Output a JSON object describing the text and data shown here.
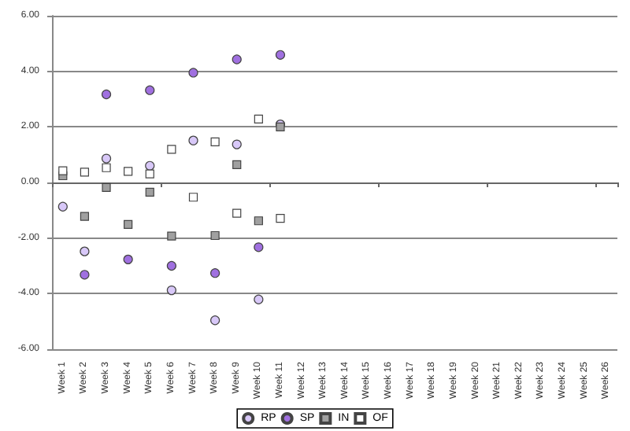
{
  "chart_data": {
    "type": "scatter",
    "categories": [
      "Week 1",
      "Week 2",
      "Week 3",
      "Week 4",
      "Week 5",
      "Week 6",
      "Week 7",
      "Week 8",
      "Week 9",
      "Week 10",
      "Week 11",
      "Week 12",
      "Week 13",
      "Week 14",
      "Week 15",
      "Week 16",
      "Week 17",
      "Week 18",
      "Week 19",
      "Week 20",
      "Week 21",
      "Week 22",
      "Week 23",
      "Week 24",
      "Week 25",
      "Week 26"
    ],
    "series": [
      {
        "name": "RP",
        "color": "#d8c8f8",
        "marker": "circle",
        "values": [
          -0.87,
          -2.48,
          0.86,
          null,
          0.6,
          -3.88,
          1.51,
          -4.96,
          1.37,
          -4.21,
          2.09,
          null,
          null,
          null,
          null,
          null,
          null,
          null,
          null,
          null,
          null,
          null,
          null,
          null,
          null,
          null
        ]
      },
      {
        "name": "SP",
        "color": "#a070e0",
        "marker": "circle",
        "values": [
          null,
          -3.32,
          3.17,
          -2.77,
          3.32,
          -3.0,
          3.95,
          -3.26,
          4.43,
          -2.33,
          4.59,
          null,
          null,
          null,
          null,
          null,
          null,
          null,
          null,
          null,
          null,
          null,
          null,
          null,
          null,
          null
        ]
      },
      {
        "name": "IN",
        "color": "#a0a0a0",
        "marker": "square",
        "values": [
          0.24,
          -1.22,
          -0.18,
          -1.51,
          -0.35,
          -1.93,
          null,
          -1.91,
          0.64,
          -1.38,
          2.0,
          null,
          null,
          null,
          null,
          null,
          null,
          null,
          null,
          null,
          null,
          null,
          null,
          null,
          null,
          null
        ]
      },
      {
        "name": "OF",
        "color": "#ffffff",
        "marker": "square",
        "values": [
          0.42,
          0.37,
          0.53,
          0.4,
          0.31,
          1.19,
          -0.53,
          1.46,
          -1.11,
          2.28,
          -1.29,
          null,
          null,
          null,
          null,
          null,
          null,
          null,
          null,
          null,
          null,
          null,
          null,
          null,
          null,
          null
        ]
      }
    ],
    "ylim": [
      -6,
      6
    ],
    "yticks": [
      {
        "value": -6,
        "label": "-6.00"
      },
      {
        "value": -4,
        "label": "-4.00"
      },
      {
        "value": -2,
        "label": "-2.00"
      },
      {
        "value": 0,
        "label": "0.00"
      },
      {
        "value": 2,
        "label": "2.00"
      },
      {
        "value": 4,
        "label": "4.00"
      },
      {
        "value": 6,
        "label": "6.00"
      }
    ],
    "grid": "y",
    "legend": "bottom"
  }
}
